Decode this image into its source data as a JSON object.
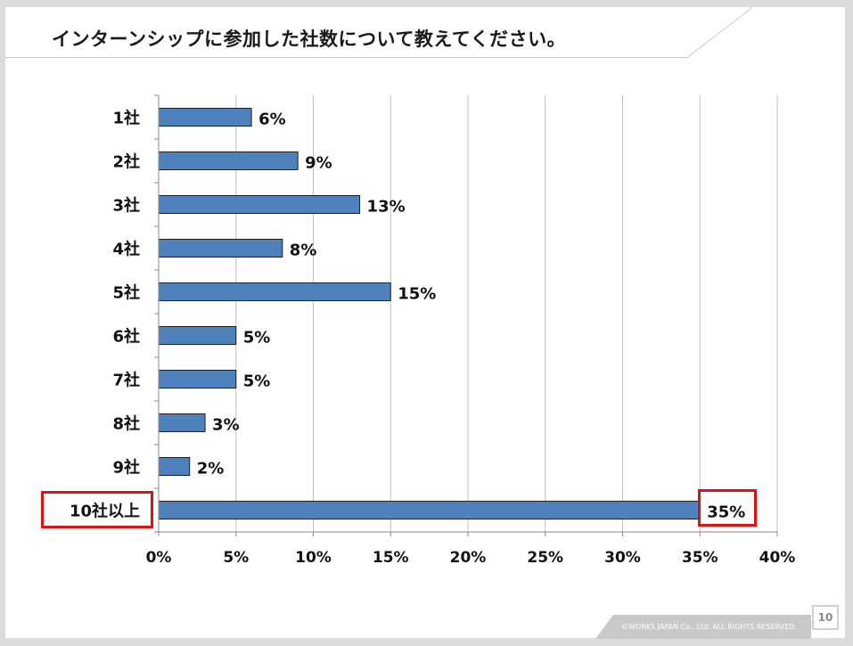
{
  "title": "インターンシップに参加した社数について教えてください。",
  "footer": {
    "copyright": "©WORKS JAPAN Co., Ltd. ALL RIGHTS RESERVED.",
    "page_number": "10"
  },
  "colors": {
    "bar": "#4f81bd",
    "highlight": "#e01010",
    "grid": "#bfbfbf"
  },
  "chart_data": {
    "type": "bar",
    "orientation": "horizontal",
    "categories": [
      "1社",
      "2社",
      "3社",
      "4社",
      "5社",
      "6社",
      "7社",
      "8社",
      "9社",
      "10社以上"
    ],
    "values": [
      6,
      9,
      13,
      8,
      15,
      5,
      5,
      3,
      2,
      35
    ],
    "data_labels": [
      "6%",
      "9%",
      "13%",
      "8%",
      "15%",
      "5%",
      "5%",
      "3%",
      "2%",
      "35%"
    ],
    "x_ticks": [
      "0%",
      "5%",
      "10%",
      "15%",
      "20%",
      "25%",
      "30%",
      "35%",
      "40%"
    ],
    "xlim": [
      0,
      40
    ],
    "grid": true,
    "legend": "none",
    "highlighted_category": "10社以上"
  }
}
